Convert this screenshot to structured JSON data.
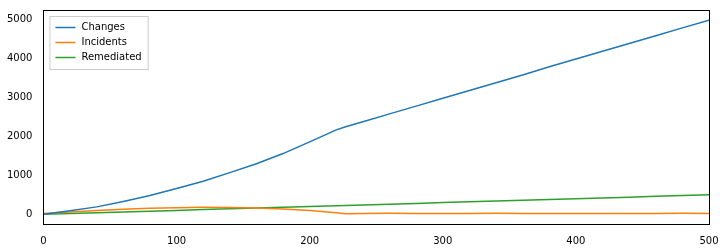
{
  "chart_data": {
    "type": "line",
    "x": [
      0,
      20,
      40,
      60,
      80,
      100,
      120,
      140,
      160,
      180,
      200,
      220,
      227,
      240,
      260,
      280,
      300,
      320,
      340,
      360,
      380,
      400,
      420,
      440,
      460,
      480,
      500
    ],
    "series": [
      {
        "name": "Changes",
        "color": "#1f77b4",
        "values": [
          0,
          90,
          190,
          330,
          480,
          660,
          850,
          1070,
          1300,
          1560,
          1860,
          2170,
          2250,
          2380,
          2580,
          2780,
          2980,
          3180,
          3380,
          3580,
          3790,
          3990,
          4190,
          4390,
          4590,
          4790,
          4990
        ]
      },
      {
        "name": "Incidents",
        "color": "#ff7f0e",
        "values": [
          20,
          60,
          100,
          130,
          155,
          170,
          178,
          175,
          160,
          135,
          95,
          40,
          15,
          20,
          25,
          18,
          22,
          20,
          24,
          19,
          21,
          23,
          18,
          22,
          20,
          25,
          20
        ]
      },
      {
        "name": "Remediated",
        "color": "#2ca02c",
        "values": [
          0,
          20,
          40,
          60,
          80,
          100,
          120,
          140,
          160,
          180,
          200,
          220,
          227,
          240,
          260,
          280,
          300,
          320,
          340,
          360,
          380,
          400,
          420,
          440,
          460,
          480,
          500
        ]
      }
    ],
    "xlim": [
      0,
      500
    ],
    "xticks": [
      0,
      100,
      200,
      300,
      400,
      500
    ],
    "ylim": [
      -250,
      5250
    ],
    "yticks": [
      0,
      1000,
      2000,
      3000,
      4000,
      5000
    ],
    "grid": false,
    "legend": "upper left"
  }
}
